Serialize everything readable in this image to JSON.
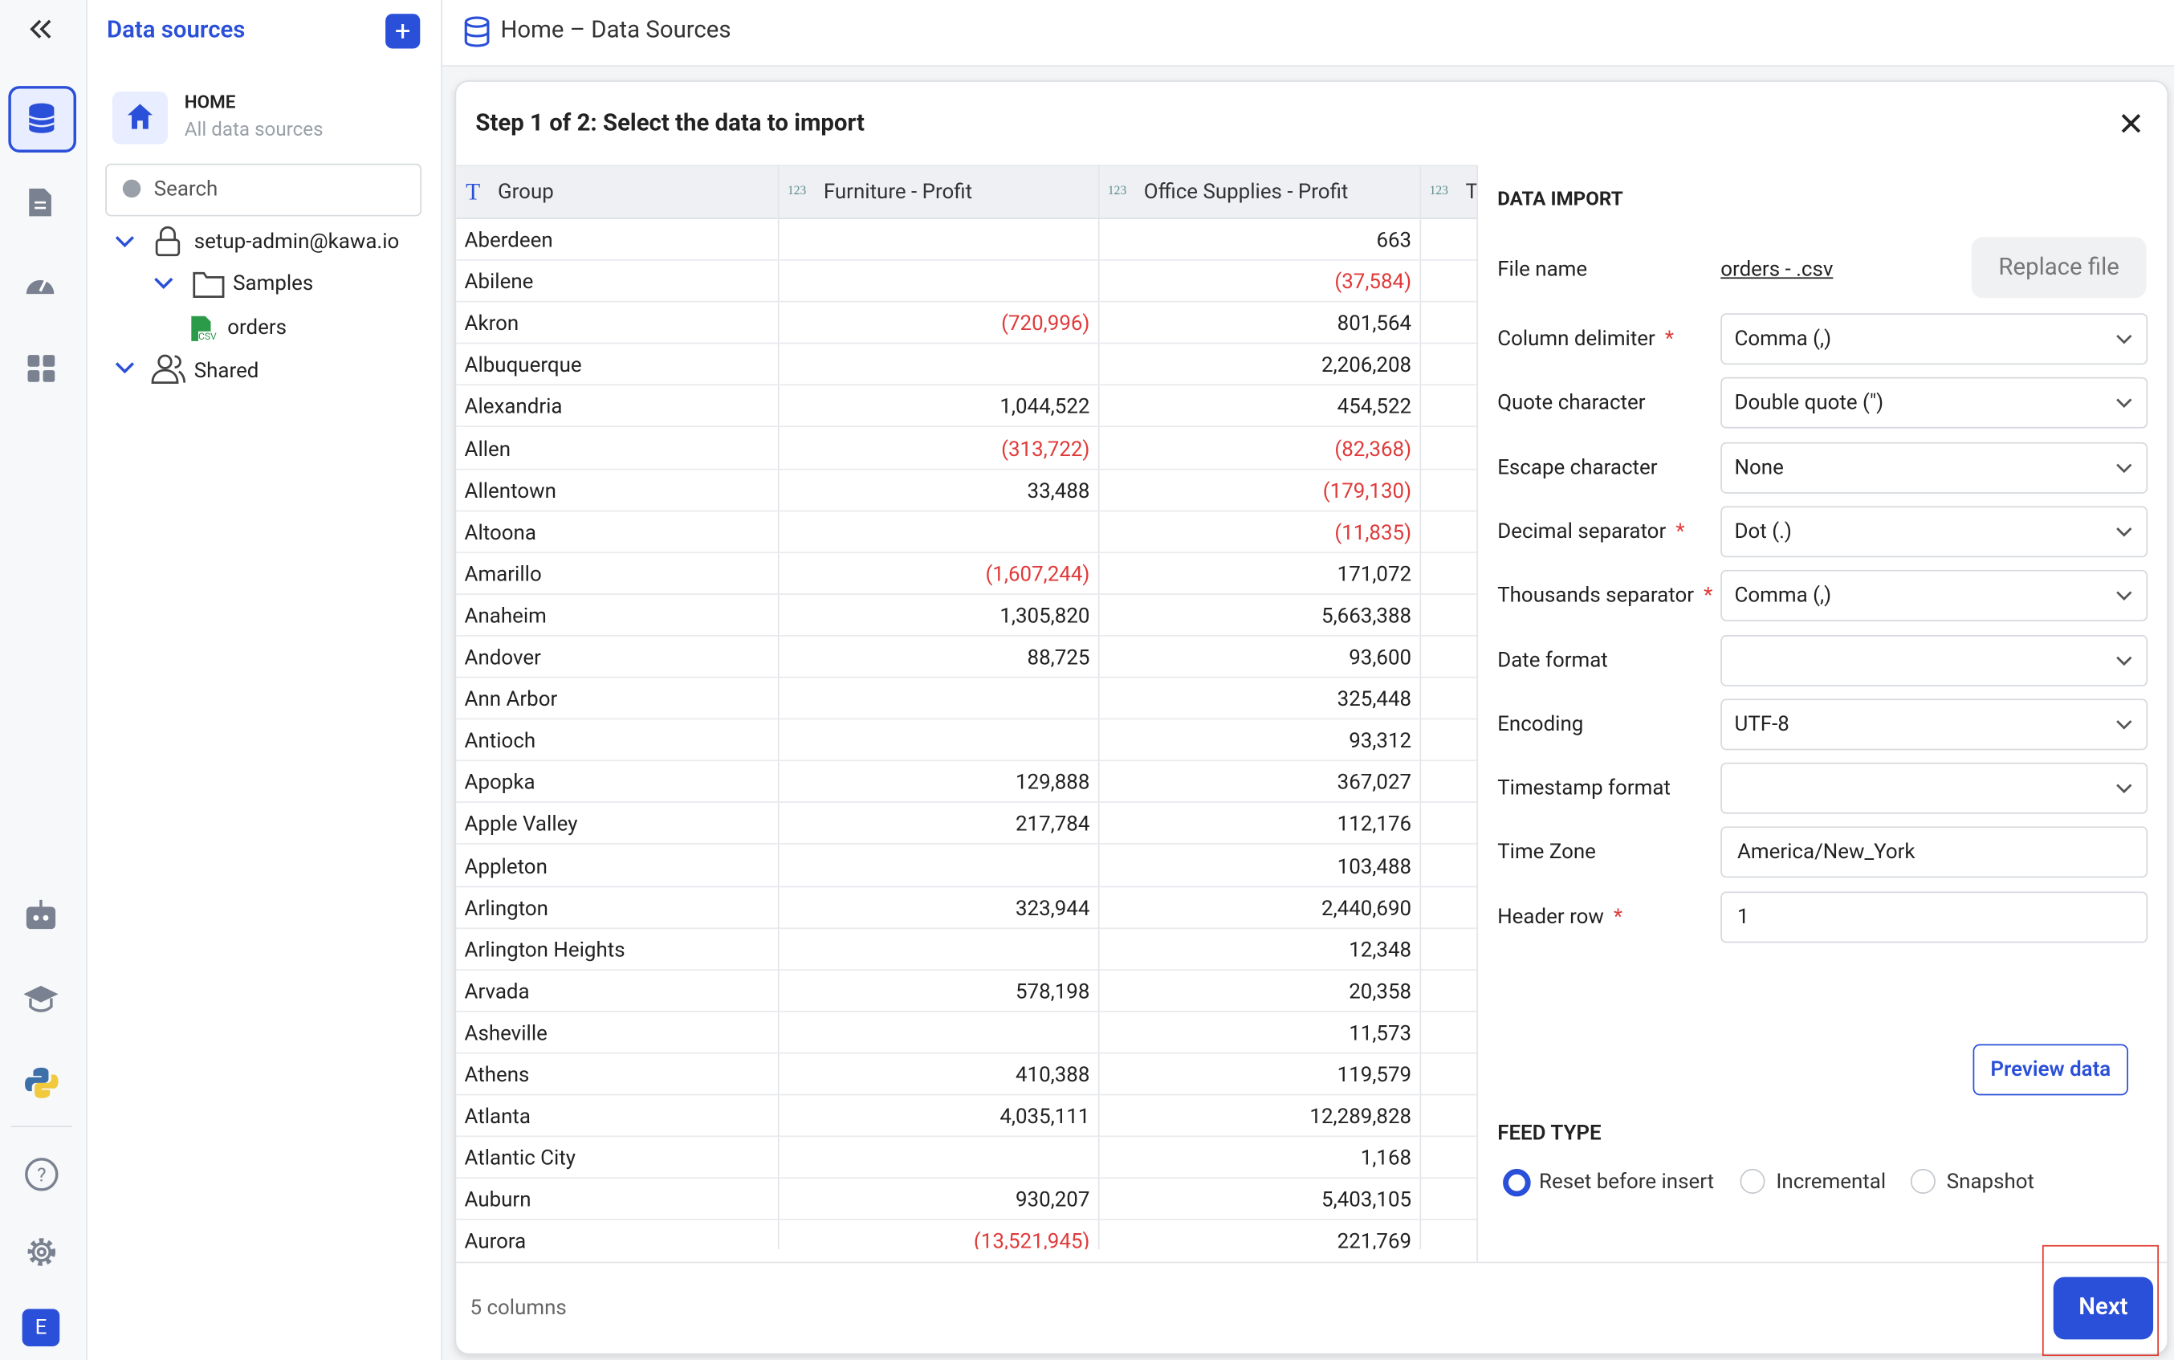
{
  "sidebar": {
    "title": "Data sources",
    "home_title": "HOME",
    "home_subtitle": "All data sources",
    "search_placeholder": "Search",
    "tree": [
      {
        "label": "setup-admin@kawa.io"
      },
      {
        "label": "Samples"
      },
      {
        "label": "orders",
        "icon_text": "CSV"
      },
      {
        "label": "Shared"
      }
    ],
    "avatar": "E"
  },
  "header": {
    "breadcrumb": "Home – Data Sources"
  },
  "dialog": {
    "title": "Step 1 of 2: Select the data to import",
    "table": {
      "columns": [
        {
          "badge": "T",
          "name": "Group"
        },
        {
          "badge": "123",
          "name": "Furniture - Profit"
        },
        {
          "badge": "123",
          "name": "Office Supplies - Profit"
        },
        {
          "badge": "123",
          "name": "T"
        }
      ],
      "rows": [
        [
          "Aberdeen",
          null,
          "663"
        ],
        [
          "Abilene",
          null,
          "(37,584)"
        ],
        [
          "Akron",
          "(720,996)",
          "801,564"
        ],
        [
          "Albuquerque",
          null,
          "2,206,208"
        ],
        [
          "Alexandria",
          "1,044,522",
          "454,522"
        ],
        [
          "Allen",
          "(313,722)",
          "(82,368)"
        ],
        [
          "Allentown",
          "33,488",
          "(179,130)"
        ],
        [
          "Altoona",
          null,
          "(11,835)"
        ],
        [
          "Amarillo",
          "(1,607,244)",
          "171,072"
        ],
        [
          "Anaheim",
          "1,305,820",
          "5,663,388"
        ],
        [
          "Andover",
          "88,725",
          "93,600"
        ],
        [
          "Ann Arbor",
          null,
          "325,448"
        ],
        [
          "Antioch",
          null,
          "93,312"
        ],
        [
          "Apopka",
          "129,888",
          "367,027"
        ],
        [
          "Apple Valley",
          "217,784",
          "112,176"
        ],
        [
          "Appleton",
          null,
          "103,488"
        ],
        [
          "Arlington",
          "323,944",
          "2,440,690"
        ],
        [
          "Arlington Heights",
          null,
          "12,348"
        ],
        [
          "Arvada",
          "578,198",
          "20,358"
        ],
        [
          "Asheville",
          null,
          "11,573"
        ],
        [
          "Athens",
          "410,388",
          "119,579"
        ],
        [
          "Atlanta",
          "4,035,111",
          "12,289,828"
        ],
        [
          "Atlantic City",
          null,
          "1,168"
        ],
        [
          "Auburn",
          "930,207",
          "5,403,105"
        ],
        [
          "Aurora",
          "(13,521,945)",
          "221,769"
        ]
      ]
    },
    "form": {
      "section": "DATA IMPORT",
      "required_mark": "*",
      "file_label": "File name",
      "file_name": "orders - .csv",
      "replace_button": "Replace file",
      "fields": [
        {
          "label": "Column delimiter",
          "required": true,
          "kind": "select",
          "value": "Comma (,)"
        },
        {
          "label": "Quote character",
          "required": false,
          "kind": "select",
          "value": "Double quote (\")"
        },
        {
          "label": "Escape character",
          "required": false,
          "kind": "select",
          "value": "None"
        },
        {
          "label": "Decimal separator",
          "required": true,
          "kind": "select",
          "value": "Dot (.)"
        },
        {
          "label": "Thousands separator",
          "required": true,
          "kind": "select",
          "value": "Comma (,)"
        },
        {
          "label": "Date format",
          "required": false,
          "kind": "select",
          "value": null
        },
        {
          "label": "Encoding",
          "required": false,
          "kind": "select",
          "value": "UTF-8"
        },
        {
          "label": "Timestamp format",
          "required": false,
          "kind": "select",
          "value": null
        },
        {
          "label": "Time Zone",
          "required": false,
          "kind": "input",
          "value": "America/New_York"
        },
        {
          "label": "Header row",
          "required": true,
          "kind": "input",
          "value": "1"
        }
      ],
      "preview_button": "Preview data",
      "feed_title": "FEED TYPE",
      "feed_options": [
        {
          "label": "Reset before insert",
          "selected": true
        },
        {
          "label": "Incremental",
          "selected": false
        },
        {
          "label": "Snapshot",
          "selected": false
        }
      ]
    },
    "footer": {
      "columns_count": "5 columns",
      "next_button": "Next"
    }
  }
}
